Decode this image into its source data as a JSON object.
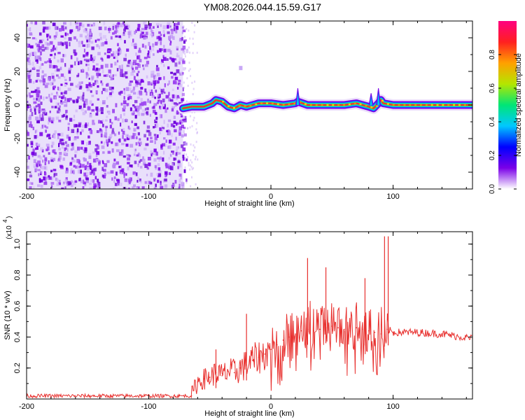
{
  "title": "YM08.2026.044.15.59.G17",
  "chart_data": [
    {
      "type": "heatmap",
      "xlabel": "Height of straight line (km)",
      "ylabel": "Frequency (Hz)",
      "xlim": [
        -200,
        165
      ],
      "ylim": [
        -50,
        50
      ],
      "xticks": [
        -200,
        -100,
        0,
        100
      ],
      "yticks": [
        -40,
        -20,
        0,
        20,
        40
      ],
      "colorbar": {
        "label": "Normalized spectral amplitude",
        "ticks": [
          "0.0",
          "0.2",
          "0.4",
          "0.6",
          "0.8"
        ],
        "range": [
          0,
          1
        ],
        "colors": [
          "#ffffff",
          "#7a00e8",
          "#0000ff",
          "#00c8ff",
          "#00e676",
          "#b4e600",
          "#ffa000",
          "#ff2020",
          "#ff0080"
        ]
      },
      "noise_region_x": [
        -200,
        -72
      ],
      "signal_track": {
        "x": [
          -72,
          -65,
          -55,
          -48,
          -45,
          -40,
          -35,
          -30,
          -25,
          -20,
          -15,
          -10,
          0,
          10,
          20,
          22,
          30,
          40,
          50,
          60,
          70,
          80,
          84,
          88,
          90,
          92,
          100,
          120,
          140,
          165
        ],
        "freq": [
          -2,
          -1,
          -1,
          1,
          3,
          2,
          -1,
          -2,
          0,
          -1,
          0,
          1,
          1,
          0,
          1,
          2,
          0,
          0,
          0,
          0,
          1,
          -1,
          -2,
          1,
          3,
          1,
          0,
          0,
          0,
          0
        ]
      },
      "spikes": [
        {
          "x": 22,
          "freq_max": 10
        },
        {
          "x": 82,
          "freq_max": 7
        },
        {
          "x": 88,
          "freq_max": 10
        },
        {
          "x": -25,
          "freq_max": 22
        }
      ]
    },
    {
      "type": "line",
      "xlabel": "Height of straight line (km)",
      "ylabel": "SNR (10 * v/v)",
      "yscale_label": "(x10",
      "yscale_exp": "4",
      "xlim": [
        -200,
        165
      ],
      "ylim": [
        0,
        1.08
      ],
      "xticks": [
        -200,
        -100,
        0,
        100
      ],
      "yticks": [
        0.2,
        0.4,
        0.6,
        0.8,
        1.0
      ],
      "color": "#e8302e",
      "series": [
        {
          "x": [
            -200,
            -150,
            -100,
            -75,
            -65,
            -60,
            -55,
            -50,
            -45,
            -40,
            -35,
            -30,
            -25,
            -20,
            -15,
            -10,
            -5,
            0,
            5,
            10,
            15,
            20,
            25,
            30,
            35,
            40,
            45,
            50,
            55,
            60,
            65,
            70,
            75,
            80,
            85,
            90,
            95,
            100,
            120,
            140,
            165
          ],
          "values": [
            0.02,
            0.02,
            0.02,
            0.02,
            0.02,
            0.11,
            0.13,
            0.14,
            0.17,
            0.15,
            0.18,
            0.17,
            0.2,
            0.22,
            0.25,
            0.27,
            0.29,
            0.32,
            0.35,
            0.38,
            0.4,
            0.42,
            0.44,
            0.45,
            0.44,
            0.45,
            0.46,
            0.47,
            0.46,
            0.45,
            0.44,
            0.46,
            0.45,
            0.44,
            0.43,
            0.42,
            0.45,
            0.43,
            0.43,
            0.42,
            0.39
          ]
        }
      ],
      "peaks": [
        {
          "x": -45,
          "value": 0.32
        },
        {
          "x": -20,
          "value": 0.55
        },
        {
          "x": 30,
          "value": 0.91
        },
        {
          "x": 45,
          "value": 0.85
        },
        {
          "x": 77,
          "value": 0.78
        },
        {
          "x": 93,
          "value": 1.05
        },
        {
          "x": 96,
          "value": 1.05
        }
      ]
    }
  ]
}
